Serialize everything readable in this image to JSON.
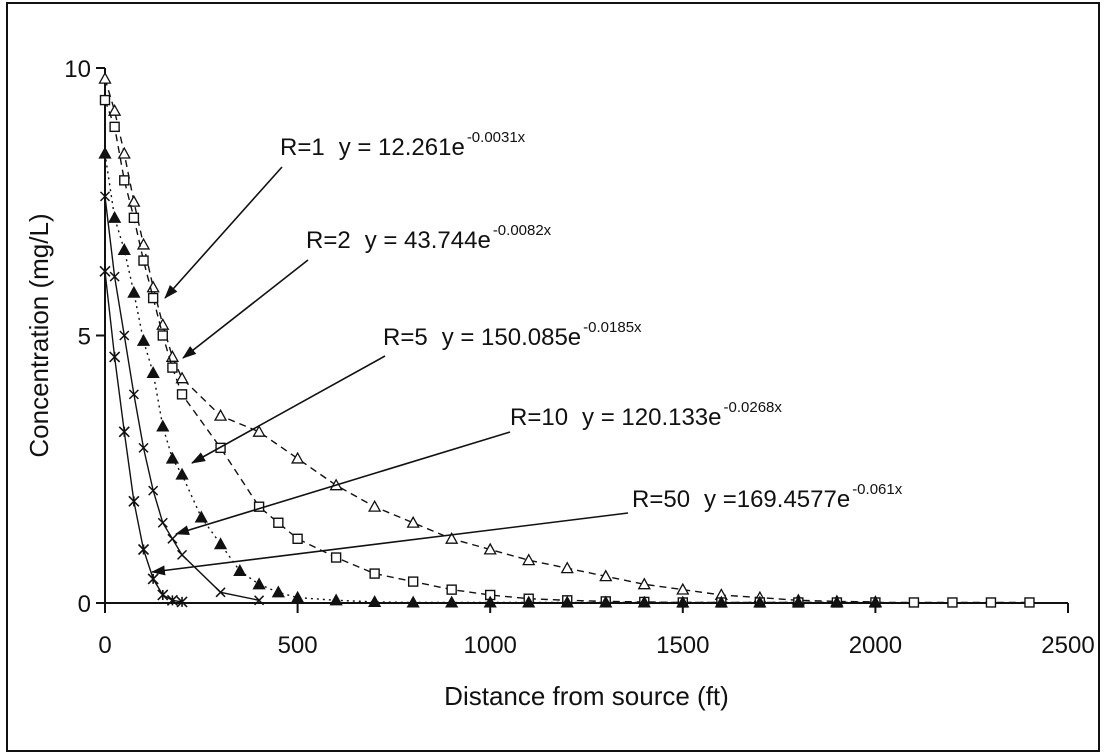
{
  "chart_data": {
    "type": "scatter",
    "title": "",
    "xlabel": "Distance from source (ft)",
    "ylabel": "Concentration (mg/L)",
    "xlim": [
      0,
      2500
    ],
    "ylim": [
      0,
      10
    ],
    "x_ticks": [
      "0",
      "500",
      "1000",
      "1500",
      "2000",
      "2500"
    ],
    "y_ticks": [
      "0",
      "5",
      "10"
    ],
    "grid": false,
    "legend": "none",
    "series": [
      {
        "name": "R=1",
        "marker": "open-triangle",
        "line": "dashed",
        "x": [
          0,
          25,
          50,
          75,
          100,
          125,
          150,
          175,
          200,
          300,
          400,
          500,
          600,
          700,
          800,
          900,
          1000,
          1100,
          1200,
          1300,
          1400,
          1500,
          1600,
          1700,
          1800,
          1900,
          2000
        ],
        "y": [
          9.8,
          9.2,
          8.4,
          7.5,
          6.7,
          5.9,
          5.2,
          4.6,
          4.2,
          3.5,
          3.2,
          2.7,
          2.2,
          1.8,
          1.5,
          1.2,
          1.0,
          0.8,
          0.65,
          0.5,
          0.35,
          0.25,
          0.15,
          0.1,
          0.05,
          0.03,
          0.02
        ],
        "fit_label": "R=1",
        "fit_equation": "y = 12.261e",
        "fit_exponent": "-0.0031x"
      },
      {
        "name": "R=2",
        "marker": "open-square",
        "line": "dashed",
        "x": [
          0,
          25,
          50,
          75,
          100,
          125,
          150,
          175,
          200,
          300,
          400,
          450,
          500,
          600,
          700,
          800,
          900,
          1000,
          1100,
          1200,
          1300,
          1400,
          1500,
          1600,
          1700,
          1800,
          1900,
          2000,
          2100,
          2200,
          2300,
          2400
        ],
        "y": [
          9.4,
          8.9,
          7.9,
          7.2,
          6.4,
          5.7,
          5.0,
          4.4,
          3.9,
          2.9,
          1.8,
          1.5,
          1.2,
          0.85,
          0.55,
          0.4,
          0.25,
          0.15,
          0.08,
          0.05,
          0.03,
          0.02,
          0.01,
          0.01,
          0.01,
          0.01,
          0.01,
          0.01,
          0.01,
          0.01,
          0.01,
          0.01
        ],
        "fit_label": "R=2",
        "fit_equation": "y = 43.744e",
        "fit_exponent": "-0.0082x"
      },
      {
        "name": "R=5",
        "marker": "filled-triangle",
        "line": "dotted",
        "x": [
          0,
          25,
          50,
          75,
          100,
          125,
          150,
          175,
          200,
          250,
          300,
          350,
          400,
          450,
          500,
          600,
          700,
          800,
          900,
          1000,
          1100,
          1200,
          1300,
          1400,
          1500,
          1600,
          1700,
          1800,
          1900,
          2000
        ],
        "y": [
          8.4,
          7.2,
          6.6,
          5.8,
          4.9,
          4.3,
          3.3,
          2.7,
          2.4,
          1.6,
          1.1,
          0.6,
          0.35,
          0.2,
          0.1,
          0.05,
          0.02,
          0.01,
          0.01,
          0.01,
          0.01,
          0.01,
          0.01,
          0.01,
          0.01,
          0.01,
          0.01,
          0.01,
          0.01,
          0.01
        ],
        "fit_label": "R=5",
        "fit_equation": "y = 150.085e",
        "fit_exponent": "-0.0185x"
      },
      {
        "name": "R=10",
        "marker": "x",
        "line": "solid",
        "x": [
          0,
          25,
          50,
          75,
          100,
          125,
          150,
          175,
          200,
          300,
          400
        ],
        "y": [
          7.6,
          6.1,
          5.0,
          3.9,
          2.9,
          2.1,
          1.5,
          1.2,
          0.9,
          0.2,
          0.05
        ],
        "fit_label": "R=10",
        "fit_equation": "y = 120.133e",
        "fit_exponent": "-0.0268x"
      },
      {
        "name": "R=50",
        "marker": "star",
        "line": "solid",
        "x": [
          0,
          25,
          50,
          75,
          100,
          125,
          150,
          175,
          200
        ],
        "y": [
          6.2,
          4.6,
          3.2,
          1.9,
          1.0,
          0.45,
          0.15,
          0.05,
          0.02
        ],
        "fit_label": "R=50",
        "fit_equation": "y =169.4577e",
        "fit_exponent": "-0.061x"
      }
    ],
    "colors": {
      "ink": "#111111",
      "background": "#ffffff"
    }
  }
}
